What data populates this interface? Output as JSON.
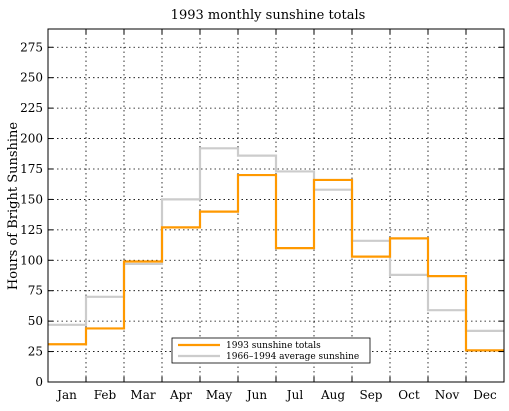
{
  "chart_data": {
    "type": "line",
    "step": true,
    "title": "1993 monthly sunshine totals",
    "xlabel": "",
    "ylabel": "Hours of Bright Sunshine",
    "categories": [
      "Jan",
      "Feb",
      "Mar",
      "Apr",
      "May",
      "Jun",
      "Jul",
      "Aug",
      "Sep",
      "Oct",
      "Nov",
      "Dec"
    ],
    "ylim": [
      0,
      290
    ],
    "yticks": [
      0,
      25,
      50,
      75,
      100,
      125,
      150,
      175,
      200,
      225,
      250,
      275
    ],
    "grid": true,
    "legend_position": "bottom-center",
    "series": [
      {
        "name": "1993 sunshine totals",
        "color": "#ff9900",
        "values": [
          31,
          44,
          99,
          127,
          140,
          170,
          110,
          166,
          103,
          118,
          87,
          26
        ]
      },
      {
        "name": "1966–1994 average sunshine",
        "color": "#cccccc",
        "values": [
          47,
          70,
          97,
          150,
          192,
          186,
          173,
          158,
          116,
          88,
          59,
          42
        ]
      }
    ]
  }
}
